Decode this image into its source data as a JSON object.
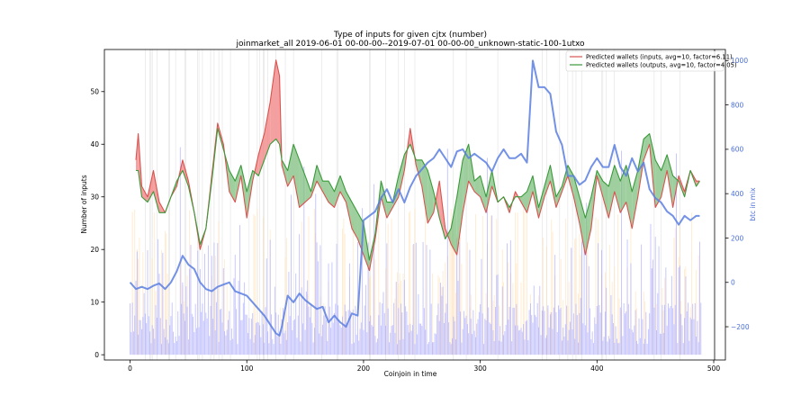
{
  "chart_data": {
    "type": "line",
    "title": "Type of inputs for given cjtx (number)",
    "subtitle": "joinmarket_all 2019-06-01 00-00-00--2019-07-01 00-00-00_unknown-static-100-1utxo",
    "xlabel": "Coinjoin in time",
    "ylabel": "Number of inputs",
    "ylabel_right": "btc in mix",
    "xlim": [
      -22,
      510
    ],
    "ylim": [
      -1,
      58
    ],
    "ylim_right": [
      -350,
      1050
    ],
    "x_ticks": [
      "0",
      "100",
      "200",
      "300",
      "400",
      "500"
    ],
    "y_ticks": [
      "0",
      "10",
      "20",
      "30",
      "40",
      "50"
    ],
    "y_ticks_right": [
      "−200",
      "0",
      "200",
      "400",
      "600",
      "800",
      "1000"
    ],
    "legend_position": "top-right",
    "colors": {
      "inputs": "#d9534f",
      "outputs": "#3a9a3a",
      "fill_inputs": "#f28080",
      "fill_outputs": "#7fbf7f",
      "btc": "#5b7fe0",
      "bars": "#8f8fff",
      "orange_bars": "#ffd59a",
      "vlines": "#cccccc"
    },
    "series": [
      {
        "name": "Predicted wallets (inputs, avg=10, factor=6.11)",
        "axis": "left",
        "x": [
          5,
          7,
          10,
          15,
          20,
          25,
          30,
          35,
          40,
          45,
          50,
          55,
          60,
          65,
          70,
          75,
          80,
          85,
          90,
          95,
          100,
          105,
          110,
          115,
          120,
          125,
          128,
          130,
          135,
          140,
          145,
          150,
          155,
          160,
          165,
          170,
          175,
          180,
          185,
          190,
          195,
          200,
          205,
          210,
          215,
          220,
          225,
          230,
          235,
          240,
          245,
          250,
          255,
          260,
          265,
          270,
          275,
          280,
          285,
          290,
          295,
          300,
          305,
          310,
          315,
          320,
          325,
          330,
          335,
          340,
          345,
          350,
          355,
          360,
          365,
          370,
          375,
          380,
          385,
          390,
          395,
          400,
          405,
          410,
          415,
          420,
          425,
          430,
          435,
          440,
          445,
          450,
          455,
          460,
          465,
          470,
          475,
          480,
          485,
          488
        ],
        "values": [
          37,
          42,
          32,
          30,
          35,
          29,
          27,
          30,
          32,
          37,
          33,
          27,
          20,
          24,
          34,
          44,
          40,
          31,
          29,
          34,
          26,
          33,
          38,
          42,
          48,
          56,
          53,
          36,
          32,
          34,
          28,
          29,
          30,
          33,
          31,
          29,
          28,
          31,
          29,
          24,
          22,
          19,
          16,
          22,
          30,
          26,
          28,
          30,
          35,
          43,
          36,
          32,
          25,
          27,
          33,
          24,
          21,
          19,
          27,
          33,
          31,
          30,
          27,
          32,
          29,
          30,
          27,
          31,
          29,
          27,
          31,
          26,
          30,
          33,
          28,
          31,
          34,
          30,
          25,
          19,
          24,
          34,
          30,
          26,
          31,
          27,
          29,
          24,
          30,
          37,
          40,
          28,
          30,
          35,
          28,
          34,
          31,
          35,
          33,
          33
        ]
      },
      {
        "name": "Predicted wallets (outputs, avg=10, factor=4.05)",
        "axis": "left",
        "x": [
          5,
          7,
          10,
          15,
          20,
          25,
          30,
          35,
          40,
          45,
          50,
          55,
          60,
          65,
          70,
          75,
          80,
          85,
          90,
          95,
          100,
          105,
          110,
          115,
          120,
          125,
          128,
          130,
          135,
          140,
          145,
          150,
          155,
          160,
          165,
          170,
          175,
          180,
          185,
          190,
          195,
          200,
          205,
          210,
          215,
          220,
          225,
          230,
          235,
          240,
          245,
          250,
          255,
          260,
          265,
          270,
          275,
          280,
          285,
          290,
          295,
          300,
          305,
          310,
          315,
          320,
          325,
          330,
          335,
          340,
          345,
          350,
          355,
          360,
          365,
          370,
          375,
          380,
          385,
          390,
          395,
          400,
          405,
          410,
          415,
          420,
          425,
          430,
          435,
          440,
          445,
          450,
          455,
          460,
          465,
          470,
          475,
          480,
          485,
          488
        ],
        "values": [
          35,
          35,
          30,
          29,
          31,
          27,
          27,
          30,
          33,
          35,
          32,
          27,
          21,
          24,
          33,
          43,
          39,
          35,
          33,
          36,
          31,
          35,
          34,
          37,
          40,
          41,
          40,
          37,
          35,
          40,
          37,
          34,
          31,
          36,
          33,
          33,
          31,
          34,
          31,
          29,
          27,
          25,
          18,
          23,
          33,
          29,
          29,
          34,
          38,
          40,
          37,
          37,
          35,
          31,
          26,
          22,
          24,
          30,
          37,
          40,
          33,
          34,
          30,
          35,
          29,
          30,
          28,
          30,
          30,
          31,
          34,
          28,
          32,
          36,
          30,
          32,
          36,
          34,
          30,
          26,
          30,
          35,
          33,
          32,
          36,
          33,
          36,
          31,
          35,
          41,
          42,
          37,
          35,
          38,
          34,
          33,
          30,
          35,
          32,
          33
        ]
      },
      {
        "name": "btc in mix",
        "axis": "right",
        "x": [
          0,
          5,
          10,
          15,
          20,
          25,
          30,
          35,
          40,
          45,
          50,
          55,
          60,
          65,
          70,
          75,
          80,
          85,
          90,
          95,
          100,
          105,
          110,
          115,
          120,
          125,
          128,
          130,
          135,
          140,
          145,
          150,
          155,
          160,
          165,
          170,
          175,
          180,
          185,
          190,
          195,
          200,
          205,
          210,
          215,
          220,
          225,
          230,
          235,
          240,
          245,
          250,
          255,
          260,
          265,
          270,
          275,
          280,
          285,
          290,
          295,
          300,
          305,
          310,
          315,
          320,
          325,
          330,
          335,
          340,
          345,
          350,
          355,
          360,
          365,
          370,
          375,
          380,
          385,
          390,
          395,
          400,
          405,
          410,
          415,
          420,
          425,
          430,
          435,
          440,
          445,
          450,
          455,
          460,
          465,
          470,
          475,
          480,
          485,
          488
        ],
        "values": [
          0,
          -30,
          -20,
          -30,
          -15,
          -5,
          -30,
          0,
          50,
          120,
          80,
          60,
          0,
          -30,
          -40,
          -20,
          -10,
          0,
          -40,
          -50,
          -60,
          -90,
          -120,
          -150,
          -190,
          -230,
          -240,
          -200,
          -60,
          -90,
          -50,
          -80,
          -100,
          -120,
          -110,
          -180,
          -150,
          -180,
          -200,
          -140,
          -150,
          280,
          300,
          320,
          380,
          420,
          360,
          420,
          360,
          430,
          480,
          510,
          540,
          560,
          600,
          560,
          520,
          590,
          600,
          560,
          580,
          560,
          540,
          500,
          560,
          600,
          560,
          560,
          580,
          540,
          1000,
          880,
          880,
          850,
          680,
          620,
          480,
          480,
          440,
          460,
          520,
          560,
          520,
          520,
          620,
          520,
          480,
          560,
          500,
          540,
          420,
          380,
          360,
          320,
          300,
          260,
          300,
          280,
          300,
          300
        ]
      }
    ]
  }
}
